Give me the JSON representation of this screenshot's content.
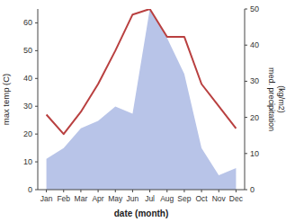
{
  "chart_data": {
    "type": "line",
    "xlabel": "date (month)",
    "ylabel": "max temp (C)",
    "y2label": "med. precipitation\n(kg/m2)",
    "categories": [
      "Jan",
      "Feb",
      "Mar",
      "Apr",
      "May",
      "Jun",
      "Jul",
      "Aug",
      "Sep",
      "Oct",
      "Nov",
      "Dec"
    ],
    "series": [
      {
        "type": "area",
        "axis": "y2",
        "color": "#b8c4e8",
        "values": [
          8.5,
          11.5,
          17,
          19,
          23,
          21,
          50,
          42,
          32,
          11.5,
          4,
          6
        ]
      },
      {
        "type": "line",
        "color": "#b94040",
        "values": [
          27,
          20,
          28,
          38,
          50,
          63,
          65,
          55,
          55,
          38,
          30,
          22
        ]
      }
    ],
    "ylim": [
      0,
      65
    ],
    "yticks": [
      0,
      10,
      20,
      30,
      40,
      50,
      60
    ],
    "y2lim": [
      0,
      50
    ],
    "y2ticks": [
      0,
      10,
      20,
      30,
      40,
      50
    ],
    "grid": false
  }
}
